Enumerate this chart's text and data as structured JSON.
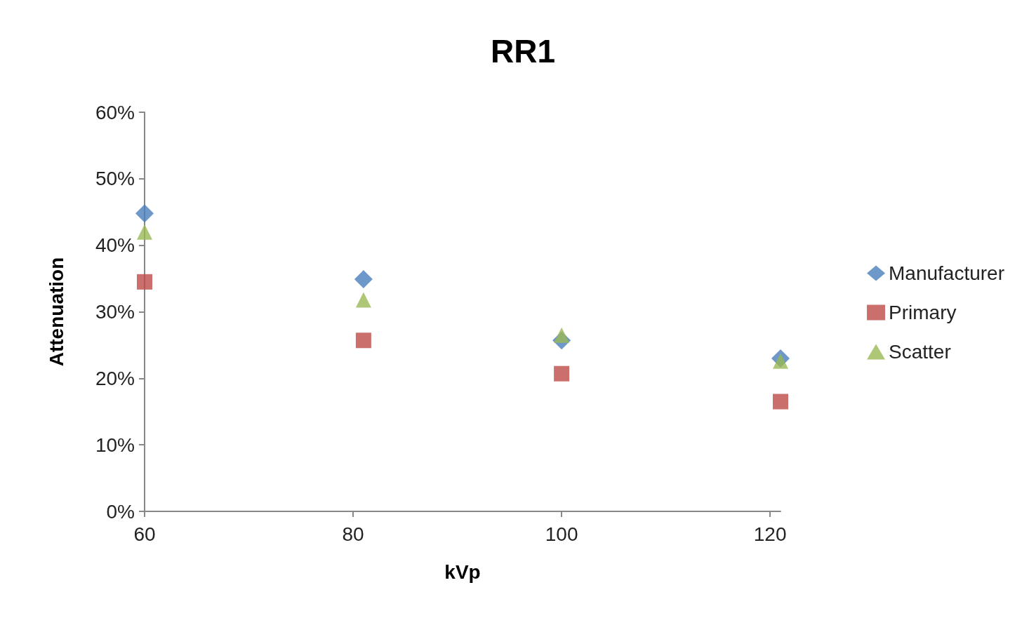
{
  "chart_data": {
    "type": "scatter",
    "title": "RR1",
    "xlabel": "kVp",
    "ylabel": "Attenuation",
    "xlim": [
      60,
      121
    ],
    "xticks": [
      60,
      80,
      100,
      120
    ],
    "ylim": [
      0,
      60
    ],
    "yticks": [
      {
        "value": 0,
        "label": "0%"
      },
      {
        "value": 10,
        "label": "10%"
      },
      {
        "value": 20,
        "label": "20%"
      },
      {
        "value": 30,
        "label": "30%"
      },
      {
        "value": 40,
        "label": "40%"
      },
      {
        "value": 50,
        "label": "50%"
      },
      {
        "value": 60,
        "label": "60%"
      }
    ],
    "grid": false,
    "legend": "right",
    "series": [
      {
        "name": "Manufacturer",
        "color": "#4a7ebb",
        "marker": "diamond",
        "x": [
          60,
          81,
          100,
          121
        ],
        "values": [
          44.8,
          34.9,
          25.7,
          23.0
        ]
      },
      {
        "name": "Primary",
        "color": "#be4b48",
        "marker": "square",
        "x": [
          60,
          81,
          100,
          121
        ],
        "values": [
          34.5,
          25.7,
          20.7,
          16.5
        ]
      },
      {
        "name": "Scatter",
        "color": "#98b954",
        "marker": "triangle",
        "x": [
          60,
          81,
          100,
          121
        ],
        "values": [
          42.0,
          31.8,
          26.5,
          22.6
        ]
      }
    ]
  }
}
